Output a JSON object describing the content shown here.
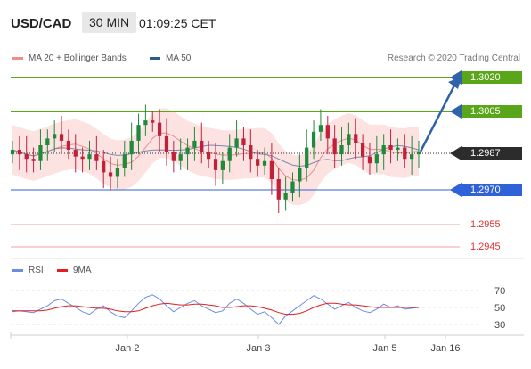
{
  "header": {
    "pair": "USD/CAD",
    "timeframe": "30 MIN",
    "time": "01:09:25 CET"
  },
  "legend": {
    "ma20_bb": "MA 20 + Bollinger Bands",
    "ma50": "MA 50",
    "credit": "Research © 2020 Trading Central",
    "rsi": "RSI",
    "ma9": "9MA"
  },
  "colors": {
    "green_level": "#5aa61a",
    "blue_level": "#2f62d6",
    "red_level": "#e06060",
    "bollinger_fill": "#fde2e2",
    "ma20": "#e88a8a",
    "ma50": "#2b5c8a",
    "candle_up": "#1f8a3a",
    "candle_down": "#c0203a",
    "rsi_line": "#6b8de0",
    "ma9_line": "#e02020",
    "arrow": "#2f62a8"
  },
  "levels": [
    {
      "value": "1.3020",
      "type": "resistance",
      "color": "green"
    },
    {
      "value": "1.3005",
      "type": "resistance",
      "color": "green"
    },
    {
      "value": "1.2987",
      "type": "current",
      "color": "dark"
    },
    {
      "value": "1.2970",
      "type": "pivot",
      "color": "blue"
    },
    {
      "value": "1.2955",
      "type": "support",
      "color": "red"
    },
    {
      "value": "1.2945",
      "type": "support",
      "color": "red"
    }
  ],
  "chart_data": {
    "type": "line",
    "title": "USD/CAD",
    "price_range": [
      1.294,
      1.3025
    ],
    "x_ticks": [
      "Jan 2",
      "Jan 3",
      "Jan 5",
      "Jan 16"
    ],
    "price_series": [
      1.2988,
      1.2986,
      1.2984,
      1.2983,
      1.299,
      1.2993,
      1.2995,
      1.2992,
      1.2988,
      1.2985,
      1.2984,
      1.2986,
      1.2983,
      1.2978,
      1.2976,
      1.298,
      1.2986,
      1.2992,
      1.2999,
      1.3001,
      1.3,
      1.2994,
      1.2987,
      1.2983,
      1.2986,
      1.2989,
      1.2992,
      1.2987,
      1.2984,
      1.2979,
      1.2983,
      1.2989,
      1.2993,
      1.299,
      1.2984,
      1.2981,
      1.2983,
      1.2975,
      1.2966,
      1.2969,
      1.2974,
      1.298,
      1.2989,
      1.2996,
      1.2999,
      1.2993,
      1.2986,
      1.299,
      1.2995,
      1.2991,
      1.2985,
      1.2982,
      1.2986,
      1.299,
      1.2988,
      1.2989,
      1.2984,
      1.2986,
      1.2987
    ],
    "rsi": {
      "ticks": [
        70,
        50,
        30
      ],
      "rsi_values": [
        45,
        46,
        45,
        44,
        48,
        52,
        58,
        60,
        55,
        50,
        45,
        42,
        48,
        52,
        45,
        40,
        38,
        46,
        55,
        62,
        65,
        60,
        52,
        45,
        50,
        55,
        58,
        52,
        48,
        44,
        46,
        55,
        60,
        55,
        48,
        42,
        45,
        38,
        30,
        40,
        46,
        52,
        58,
        64,
        60,
        54,
        48,
        52,
        56,
        50,
        46,
        44,
        48,
        54,
        50,
        52,
        48,
        49,
        50
      ],
      "ma9_values": [
        46,
        46,
        46,
        46,
        46,
        47,
        49,
        51,
        52,
        52,
        51,
        50,
        49,
        49,
        48,
        46,
        45,
        45,
        46,
        49,
        52,
        54,
        55,
        54,
        53,
        53,
        54,
        54,
        53,
        52,
        50,
        50,
        51,
        52,
        52,
        51,
        49,
        47,
        44,
        42,
        42,
        43,
        46,
        50,
        53,
        55,
        55,
        54,
        53,
        53,
        52,
        51,
        50,
        50,
        50,
        50,
        50,
        50,
        50
      ],
      "range": [
        20,
        80
      ]
    }
  }
}
